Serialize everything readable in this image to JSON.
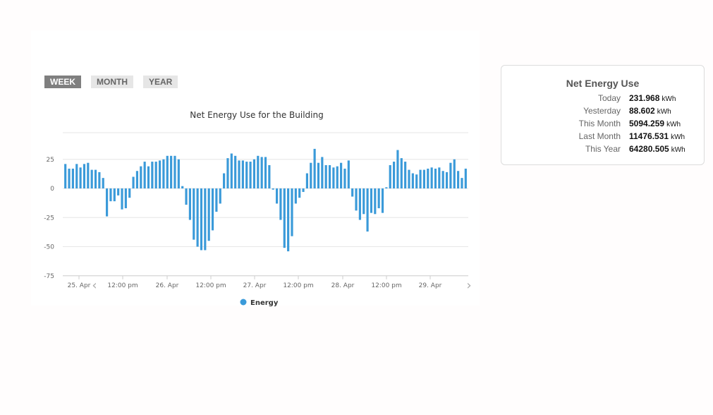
{
  "tabs": [
    {
      "label": "WEEK",
      "active": true
    },
    {
      "label": "MONTH",
      "active": false
    },
    {
      "label": "YEAR",
      "active": false
    }
  ],
  "stats": {
    "title": "Net Energy Use",
    "unit": "kWh",
    "rows": [
      {
        "label": "Today",
        "value": "231.968"
      },
      {
        "label": "Yesterday",
        "value": "88.602"
      },
      {
        "label": "This Month",
        "value": "5094.259"
      },
      {
        "label": "Last Month",
        "value": "11476.531"
      },
      {
        "label": "This Year",
        "value": "64280.505"
      }
    ]
  },
  "colors": {
    "series": "#3a9ad9",
    "grid": "#e6e6e6",
    "axis": "#cccccc"
  },
  "chart_data": {
    "type": "bar",
    "title": "Net Energy Use for the Building",
    "xlabel": "",
    "ylabel": "",
    "ylim": [
      -75,
      50
    ],
    "yticks": [
      25,
      0,
      -25,
      -50,
      -75
    ],
    "ytick_labels": [
      "25",
      "0",
      "-25",
      "-50",
      "-75"
    ],
    "grid": true,
    "legend_position": "bottom",
    "x_tick_labels": [
      "25. Apr",
      "12:00 pm",
      "26. Apr",
      "12:00 pm",
      "27. Apr",
      "12:00 pm",
      "28. Apr",
      "12:00 pm",
      "29. Apr"
    ],
    "nav_arrows": [
      "‹",
      "›"
    ],
    "series": [
      {
        "name": "Energy",
        "values": [
          21,
          17,
          17,
          21,
          18,
          21,
          22,
          16,
          16,
          14,
          9,
          -24,
          -11,
          -11,
          -6,
          -18,
          -17,
          -8,
          10,
          15,
          19,
          23,
          19,
          23,
          23,
          24,
          25,
          28,
          28,
          28,
          25,
          2,
          -14,
          -27,
          -44,
          -50,
          -53,
          -53,
          -45,
          -36,
          -20,
          -13,
          13,
          26,
          30,
          28,
          24,
          24,
          23,
          23,
          25,
          28,
          27,
          27,
          20,
          -1,
          -13,
          -27,
          -51,
          -54,
          -41,
          -13,
          -8,
          -3,
          13,
          22,
          34,
          22,
          27,
          20,
          20,
          18,
          19,
          22,
          17,
          24,
          -7,
          -19,
          -27,
          -22,
          -37,
          -21,
          -22,
          -17,
          -21,
          1,
          20,
          23,
          33,
          26,
          23,
          16,
          13,
          12,
          16,
          16,
          17,
          18,
          17,
          18,
          15,
          14,
          22,
          25,
          15,
          9,
          17
        ]
      }
    ]
  }
}
